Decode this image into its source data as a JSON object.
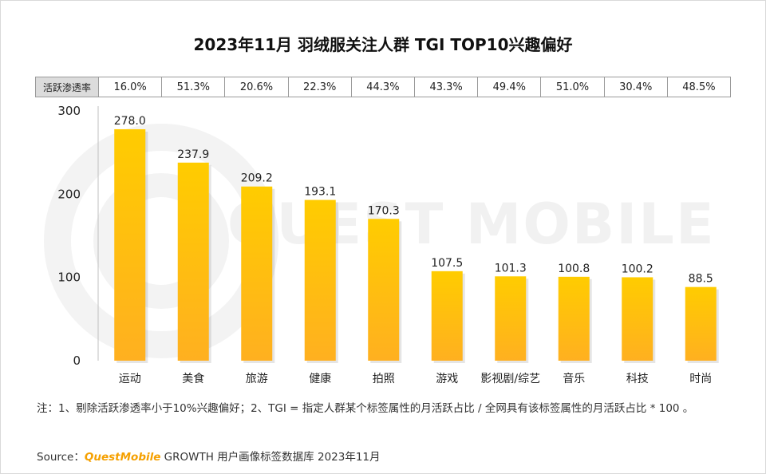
{
  "title": "2023年11月 羽绒服关注人群 TGI TOP10兴趣偏好",
  "rate_table": {
    "label": "活跃渗透率",
    "values": [
      "16.0%",
      "51.3%",
      "20.6%",
      "22.3%",
      "44.3%",
      "43.3%",
      "49.4%",
      "51.0%",
      "30.4%",
      "48.5%"
    ]
  },
  "watermark": {
    "text": "QUEST MOBILE"
  },
  "chart_data": {
    "type": "bar",
    "title": "2023年11月 羽绒服关注人群 TGI TOP10兴趣偏好",
    "categories": [
      "运动",
      "美食",
      "旅游",
      "健康",
      "拍照",
      "游戏",
      "影视剧/综艺",
      "音乐",
      "科技",
      "时尚"
    ],
    "values": [
      278.0,
      237.9,
      209.2,
      193.1,
      170.3,
      107.5,
      101.3,
      100.8,
      100.2,
      88.5
    ],
    "value_labels": [
      "278.0",
      "237.9",
      "209.2",
      "193.1",
      "170.3",
      "107.5",
      "101.3",
      "100.8",
      "100.2",
      "88.5"
    ],
    "yticks": [
      0,
      100,
      200,
      300
    ],
    "ylim": [
      0,
      300
    ],
    "xlabel": "",
    "ylabel": "",
    "grid": false,
    "bar_color_top": "#ffcc00",
    "bar_color_bottom": "#ffb020"
  },
  "footnote": "注：1、剔除活跃渗透率小于10%兴趣偏好；2、TGI = 指定人群某个标签属性的月活跃占比 / 全网具有该标签属性的月活跃占比 * 100 。",
  "source": {
    "prefix": "Source：",
    "brand": "QuestMobile",
    "suffix": " GROWTH 用户画像标签数据库 2023年11月"
  }
}
